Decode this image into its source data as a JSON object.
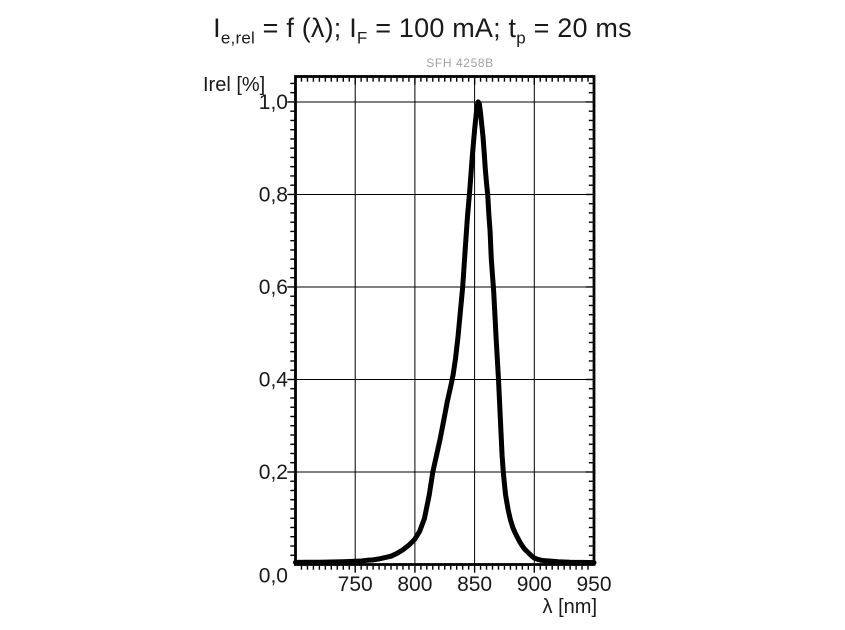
{
  "title": {
    "seg1": "I",
    "sub1": "e,rel",
    "seg2": " = f (λ); I",
    "sub2": "F",
    "seg3": " = 100 mA; t",
    "sub3": "p",
    "seg4": " = 20 ms"
  },
  "chart_data": {
    "type": "line",
    "title": "Ie,rel = f (λ); IF = 100 mA; tp = 20 ms",
    "watermark": "SFH 4258B",
    "xlabel": "λ [nm]",
    "ylabel": "Irel [%]",
    "xlim": [
      700,
      950
    ],
    "ylim": [
      0,
      1.055
    ],
    "x_ticks": [
      750,
      800,
      850,
      900,
      950
    ],
    "x_tick_labels": [
      "750",
      "800",
      "850",
      "900",
      "950"
    ],
    "y_ticks": [
      0,
      0.2,
      0.4,
      0.6,
      0.8,
      1.0
    ],
    "y_tick_labels": [
      "0,0",
      "0,2",
      "0,4",
      "0,6",
      "0,8",
      "1,0"
    ],
    "x_minor_step": 5,
    "y_minor_step": 0.02,
    "grid": true,
    "legend": "none",
    "peak": {
      "wavelength_nm": 853,
      "value": 1.0
    },
    "series": [
      {
        "name": "relative radiant intensity",
        "color": "#000000",
        "points": [
          [
            700,
            0.0045
          ],
          [
            710,
            0.005
          ],
          [
            720,
            0.005
          ],
          [
            730,
            0.0055
          ],
          [
            740,
            0.006
          ],
          [
            750,
            0.007
          ],
          [
            755,
            0.0075
          ],
          [
            760,
            0.009
          ],
          [
            765,
            0.01
          ],
          [
            770,
            0.012
          ],
          [
            775,
            0.015
          ],
          [
            780,
            0.018
          ],
          [
            785,
            0.024
          ],
          [
            790,
            0.032
          ],
          [
            795,
            0.042
          ],
          [
            800,
            0.055
          ],
          [
            804,
            0.072
          ],
          [
            808,
            0.1
          ],
          [
            812,
            0.15
          ],
          [
            815,
            0.2
          ],
          [
            818,
            0.235
          ],
          [
            821,
            0.27
          ],
          [
            824,
            0.31
          ],
          [
            827,
            0.35
          ],
          [
            830,
            0.385
          ],
          [
            832,
            0.41
          ],
          [
            834,
            0.445
          ],
          [
            836,
            0.49
          ],
          [
            838,
            0.545
          ],
          [
            840,
            0.6
          ],
          [
            842,
            0.675
          ],
          [
            844,
            0.75
          ],
          [
            846,
            0.81
          ],
          [
            848,
            0.88
          ],
          [
            850,
            0.94
          ],
          [
            851,
            0.965
          ],
          [
            852,
            0.99
          ],
          [
            853,
            1.0
          ],
          [
            854,
            0.995
          ],
          [
            855,
            0.975
          ],
          [
            856,
            0.95
          ],
          [
            857,
            0.925
          ],
          [
            858,
            0.89
          ],
          [
            859,
            0.855
          ],
          [
            860,
            0.825
          ],
          [
            861,
            0.8
          ],
          [
            862,
            0.755
          ],
          [
            863,
            0.72
          ],
          [
            864,
            0.66
          ],
          [
            865,
            0.625
          ],
          [
            866,
            0.59
          ],
          [
            867,
            0.54
          ],
          [
            868,
            0.49
          ],
          [
            869,
            0.445
          ],
          [
            870,
            0.4
          ],
          [
            871,
            0.345
          ],
          [
            872,
            0.29
          ],
          [
            873,
            0.235
          ],
          [
            874,
            0.2
          ],
          [
            875,
            0.175
          ],
          [
            876,
            0.15
          ],
          [
            877,
            0.135
          ],
          [
            878,
            0.12
          ],
          [
            879,
            0.108
          ],
          [
            880,
            0.097
          ],
          [
            882,
            0.08
          ],
          [
            884,
            0.068
          ],
          [
            886,
            0.058
          ],
          [
            888,
            0.048
          ],
          [
            890,
            0.04
          ],
          [
            892,
            0.033
          ],
          [
            894,
            0.028
          ],
          [
            896,
            0.023
          ],
          [
            898,
            0.018
          ],
          [
            900,
            0.014
          ],
          [
            903,
            0.011
          ],
          [
            906,
            0.009
          ],
          [
            910,
            0.008
          ],
          [
            915,
            0.007
          ],
          [
            920,
            0.006
          ],
          [
            930,
            0.005
          ],
          [
            940,
            0.0045
          ],
          [
            950,
            0.004
          ]
        ]
      }
    ]
  }
}
